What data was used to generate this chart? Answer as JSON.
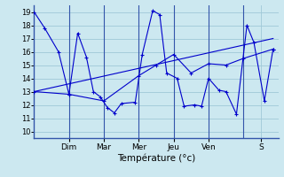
{
  "background_color": "#cce8f0",
  "grid_color": "#9fc8d8",
  "line_color": "#0000cc",
  "spine_color": "#3355aa",
  "day_labels": [
    "Dim",
    "Mar",
    "Mer",
    "Jeu",
    "Ven",
    "S"
  ],
  "xlabel": "Température (°c)",
  "ylim": [
    9.5,
    19.5
  ],
  "yticks": [
    10,
    11,
    12,
    13,
    14,
    15,
    16,
    17,
    18,
    19
  ],
  "xlim": [
    0,
    7.0
  ],
  "day_tick_positions": [
    1.0,
    2.0,
    3.0,
    4.0,
    5.0,
    6.5
  ],
  "lines": [
    {
      "x": [
        0.0,
        0.3,
        0.7,
        1.0,
        1.25,
        1.5,
        1.7,
        1.9,
        2.1,
        2.3,
        2.5,
        2.9,
        3.1,
        3.4,
        3.6,
        3.8,
        4.1,
        4.3,
        4.6,
        4.8,
        5.0,
        5.3,
        5.5,
        5.8,
        6.1,
        6.3,
        6.6,
        6.85
      ],
      "y": [
        19.0,
        17.8,
        16.0,
        12.8,
        17.4,
        15.6,
        13.0,
        12.6,
        11.8,
        11.4,
        12.1,
        12.2,
        15.8,
        19.1,
        18.8,
        14.4,
        14.0,
        11.9,
        12.0,
        11.9,
        14.0,
        13.1,
        13.0,
        11.3,
        18.0,
        16.7,
        12.3,
        16.2
      ],
      "marker": true
    },
    {
      "x": [
        0.0,
        1.0,
        2.0,
        3.0,
        3.5,
        4.0,
        4.5,
        5.0,
        5.5,
        6.0,
        6.85
      ],
      "y": [
        13.0,
        12.8,
        12.3,
        14.2,
        15.0,
        15.8,
        14.4,
        15.1,
        15.0,
        15.5,
        16.2
      ],
      "marker": true
    },
    {
      "x": [
        0.0,
        6.85
      ],
      "y": [
        13.0,
        17.0
      ],
      "marker": false
    }
  ]
}
